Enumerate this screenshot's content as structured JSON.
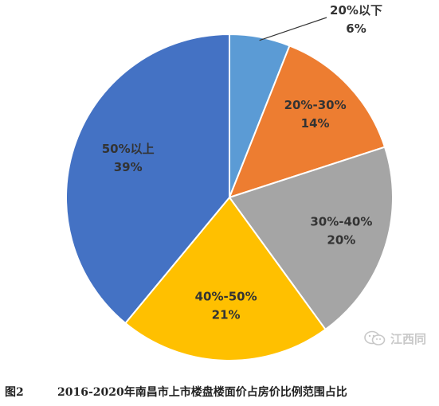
{
  "chart_data": {
    "type": "pie",
    "start_angle_deg": 0,
    "direction": "clockwise",
    "slices": [
      {
        "name": "20%以下",
        "value": 6,
        "label": "6%",
        "color": "#5B9BD5"
      },
      {
        "name": "20%-30%",
        "value": 14,
        "label": "14%",
        "color": "#ED7D31"
      },
      {
        "name": "30%-40%",
        "value": 20,
        "label": "20%",
        "color": "#A5A5A5"
      },
      {
        "name": "40%-50%",
        "value": 21,
        "label": "21%",
        "color": "#FFC000"
      },
      {
        "name": "50%以上",
        "value": 39,
        "label": "39%",
        "color": "#4472C4"
      }
    ]
  },
  "caption": {
    "figure_number": "图2",
    "text": "2016-2020年南昌市上市楼盘楼面价占房价比例范围占比"
  },
  "watermark": {
    "text": "江西同",
    "icon": "wechat-icon"
  }
}
